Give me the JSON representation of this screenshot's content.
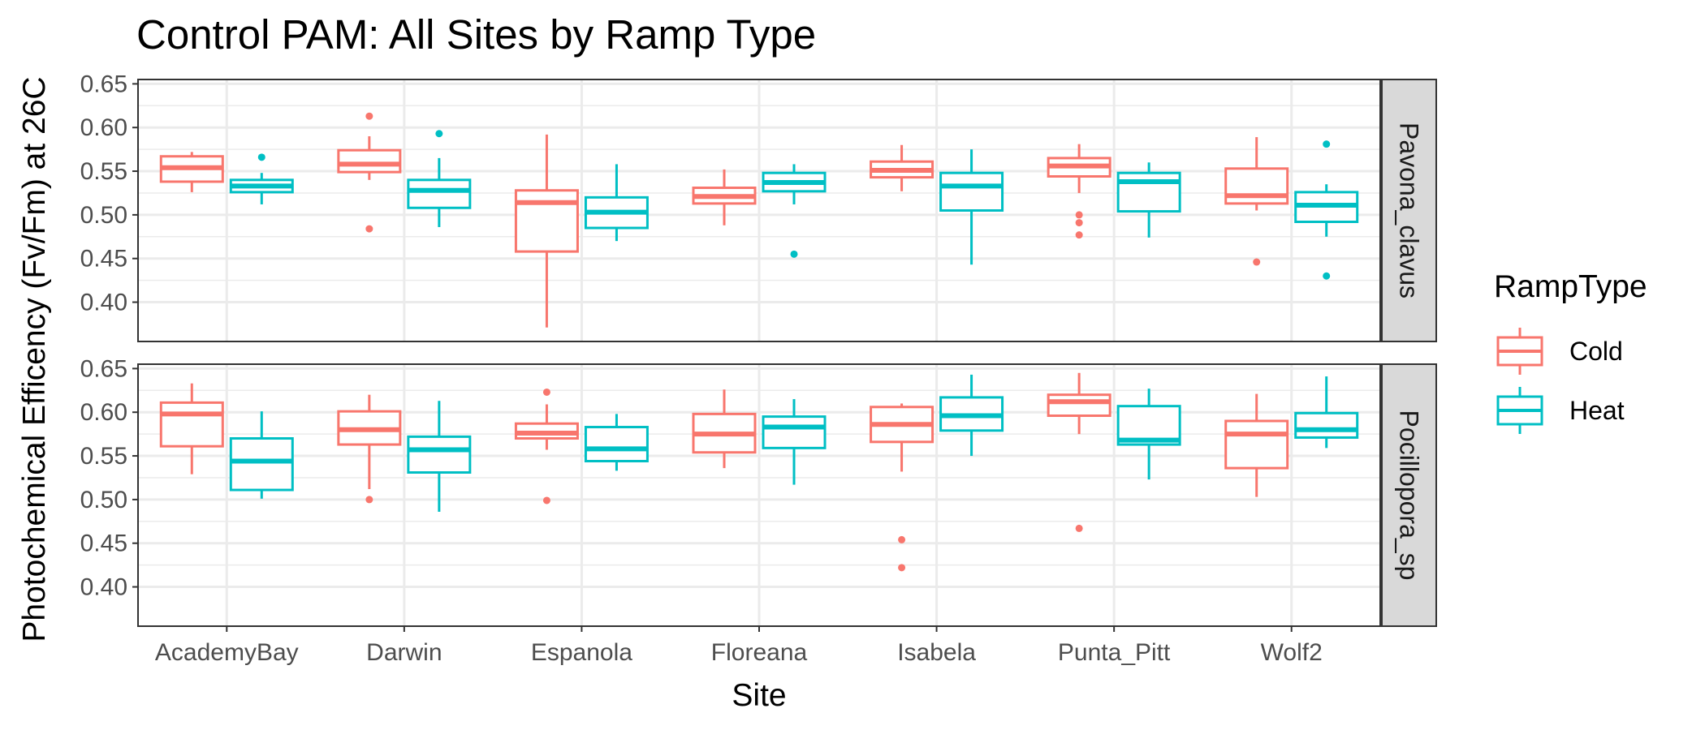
{
  "chart_data": {
    "type": "box",
    "title": "Control PAM: All Sites by Ramp Type",
    "xlabel": "Site",
    "ylabel": "Photochemical Efficency (Fv/Fm) at 26C",
    "categories": [
      "AcademyBay",
      "Darwin",
      "Espanola",
      "Floreana",
      "Isabela",
      "Punta_Pitt",
      "Wolf2"
    ],
    "ylim": [
      0.355,
      0.655
    ],
    "yticks": [
      0.4,
      0.45,
      0.5,
      0.55,
      0.6,
      0.65
    ],
    "ytick_labels": [
      "0.40",
      "0.45",
      "0.50",
      "0.55",
      "0.60",
      "0.65"
    ],
    "grid": true,
    "legend": {
      "title": "RampType",
      "position": "right",
      "entries": [
        {
          "name": "Cold",
          "color": "#F8766D"
        },
        {
          "name": "Heat",
          "color": "#00BFC4"
        }
      ]
    },
    "facets": [
      {
        "label": "Pavona_clavus",
        "series": [
          {
            "name": "Cold",
            "color": "#F8766D",
            "boxes": [
              {
                "min": 0.526,
                "q1": 0.538,
                "median": 0.554,
                "q3": 0.567,
                "max": 0.572,
                "outliers": []
              },
              {
                "min": 0.54,
                "q1": 0.549,
                "median": 0.558,
                "q3": 0.574,
                "max": 0.59,
                "outliers": [
                  0.613,
                  0.484
                ]
              },
              {
                "min": 0.371,
                "q1": 0.458,
                "median": 0.514,
                "q3": 0.528,
                "max": 0.592,
                "outliers": []
              },
              {
                "min": 0.488,
                "q1": 0.513,
                "median": 0.521,
                "q3": 0.531,
                "max": 0.552,
                "outliers": []
              },
              {
                "min": 0.527,
                "q1": 0.543,
                "median": 0.551,
                "q3": 0.561,
                "max": 0.58,
                "outliers": []
              },
              {
                "min": 0.525,
                "q1": 0.544,
                "median": 0.556,
                "q3": 0.565,
                "max": 0.581,
                "outliers": [
                  0.5,
                  0.491,
                  0.477
                ]
              },
              {
                "min": 0.505,
                "q1": 0.513,
                "median": 0.522,
                "q3": 0.553,
                "max": 0.589,
                "outliers": [
                  0.446
                ]
              }
            ]
          },
          {
            "name": "Heat",
            "color": "#00BFC4",
            "boxes": [
              {
                "min": 0.512,
                "q1": 0.526,
                "median": 0.533,
                "q3": 0.54,
                "max": 0.548,
                "outliers": [
                  0.566
                ]
              },
              {
                "min": 0.486,
                "q1": 0.508,
                "median": 0.528,
                "q3": 0.54,
                "max": 0.565,
                "outliers": [
                  0.593
                ]
              },
              {
                "min": 0.47,
                "q1": 0.485,
                "median": 0.503,
                "q3": 0.52,
                "max": 0.558,
                "outliers": []
              },
              {
                "min": 0.512,
                "q1": 0.527,
                "median": 0.537,
                "q3": 0.548,
                "max": 0.558,
                "outliers": [
                  0.455
                ]
              },
              {
                "min": 0.443,
                "q1": 0.505,
                "median": 0.533,
                "q3": 0.548,
                "max": 0.575,
                "outliers": []
              },
              {
                "min": 0.474,
                "q1": 0.504,
                "median": 0.538,
                "q3": 0.548,
                "max": 0.56,
                "outliers": []
              },
              {
                "min": 0.475,
                "q1": 0.492,
                "median": 0.511,
                "q3": 0.526,
                "max": 0.535,
                "outliers": [
                  0.581,
                  0.43
                ]
              }
            ]
          }
        ]
      },
      {
        "label": "Pocillopora_sp",
        "series": [
          {
            "name": "Cold",
            "color": "#F8766D",
            "boxes": [
              {
                "min": 0.529,
                "q1": 0.561,
                "median": 0.598,
                "q3": 0.611,
                "max": 0.633,
                "outliers": []
              },
              {
                "min": 0.512,
                "q1": 0.563,
                "median": 0.58,
                "q3": 0.601,
                "max": 0.62,
                "outliers": [
                  0.5
                ]
              },
              {
                "min": 0.557,
                "q1": 0.57,
                "median": 0.576,
                "q3": 0.587,
                "max": 0.609,
                "outliers": [
                  0.623,
                  0.499
                ]
              },
              {
                "min": 0.536,
                "q1": 0.554,
                "median": 0.575,
                "q3": 0.598,
                "max": 0.626,
                "outliers": []
              },
              {
                "min": 0.532,
                "q1": 0.566,
                "median": 0.586,
                "q3": 0.606,
                "max": 0.61,
                "outliers": [
                  0.454,
                  0.422
                ]
              },
              {
                "min": 0.575,
                "q1": 0.596,
                "median": 0.612,
                "q3": 0.62,
                "max": 0.645,
                "outliers": [
                  0.467
                ]
              },
              {
                "min": 0.503,
                "q1": 0.536,
                "median": 0.575,
                "q3": 0.59,
                "max": 0.621,
                "outliers": []
              }
            ]
          },
          {
            "name": "Heat",
            "color": "#00BFC4",
            "boxes": [
              {
                "min": 0.501,
                "q1": 0.511,
                "median": 0.544,
                "q3": 0.57,
                "max": 0.601,
                "outliers": []
              },
              {
                "min": 0.486,
                "q1": 0.531,
                "median": 0.557,
                "q3": 0.572,
                "max": 0.613,
                "outliers": []
              },
              {
                "min": 0.533,
                "q1": 0.544,
                "median": 0.558,
                "q3": 0.583,
                "max": 0.598,
                "outliers": []
              },
              {
                "min": 0.517,
                "q1": 0.559,
                "median": 0.583,
                "q3": 0.595,
                "max": 0.615,
                "outliers": []
              },
              {
                "min": 0.55,
                "q1": 0.579,
                "median": 0.596,
                "q3": 0.617,
                "max": 0.643,
                "outliers": []
              },
              {
                "min": 0.523,
                "q1": 0.563,
                "median": 0.568,
                "q3": 0.607,
                "max": 0.627,
                "outliers": []
              },
              {
                "min": 0.559,
                "q1": 0.571,
                "median": 0.58,
                "q3": 0.599,
                "max": 0.641,
                "outliers": []
              }
            ]
          }
        ]
      }
    ]
  }
}
